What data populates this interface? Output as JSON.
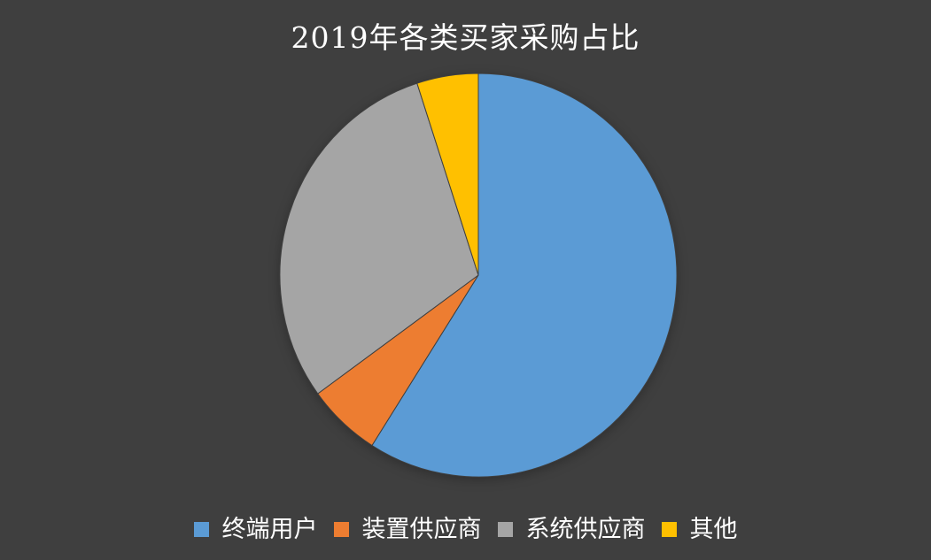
{
  "chart_data": {
    "type": "pie",
    "title": "2019年各类买家采购占比",
    "categories": [
      "终端用户",
      "装置供应商",
      "系统供应商",
      "其他"
    ],
    "values": [
      59,
      6,
      30,
      5
    ],
    "unit": "percent-share",
    "series_colors": [
      "#5B9BD5",
      "#ED7D31",
      "#A5A5A5",
      "#FFC000"
    ],
    "start_angle_deg": 0,
    "direction": "clockwise",
    "legend_position": "bottom",
    "background_color": "#3F3F3F",
    "text_color": "#FFFFFF",
    "slice_separator_color": "#3F3F3F"
  }
}
